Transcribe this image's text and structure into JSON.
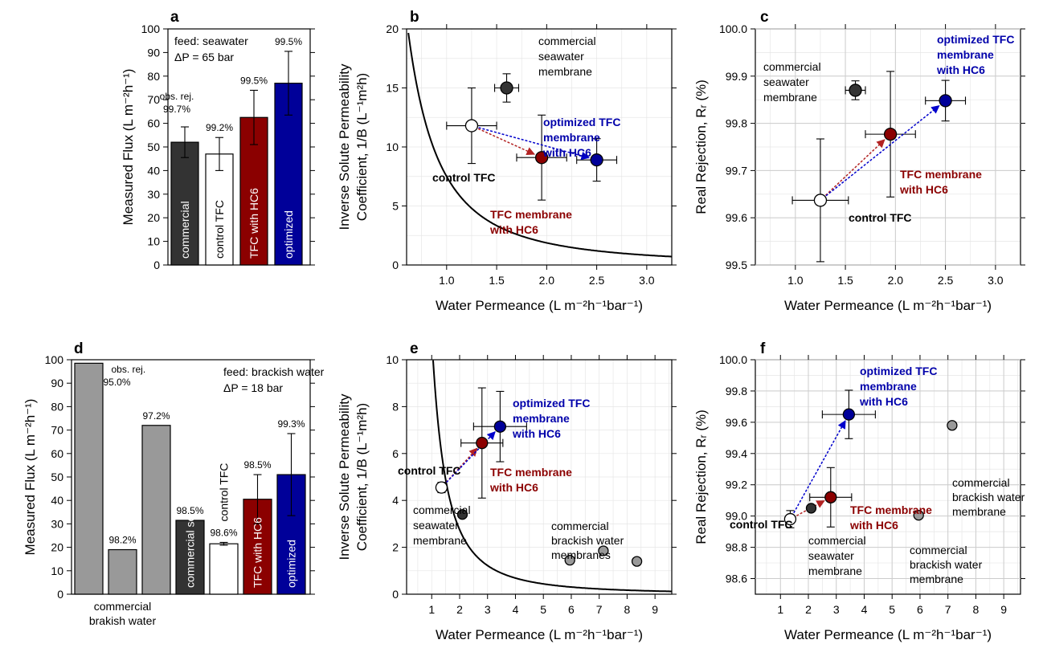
{
  "colors": {
    "commercial": "#333333",
    "control": "#ffffff",
    "hc6": "#8b0000",
    "optimized": "#000099",
    "brackish": "#999999",
    "grid": "#cccccc",
    "blue_text": "#0000aa",
    "red_text": "#8b0000"
  },
  "chart_data": [
    {
      "panel": "a",
      "type": "bar",
      "ylabel": "Measured Flux  (L m⁻²h⁻¹)",
      "ylim": [
        0,
        100
      ],
      "yticks": [
        0,
        10,
        20,
        30,
        40,
        50,
        60,
        70,
        80,
        90,
        100
      ],
      "feed_lines": [
        "feed: seawater",
        "ΔP = 65 bar"
      ],
      "obs_rej_label": "obs. rej.",
      "bars": [
        {
          "label": "commercial",
          "value": 52,
          "err": 6.5,
          "rejection": "99.7%",
          "color": "#333333"
        },
        {
          "label": "control TFC",
          "value": 47,
          "err": 7,
          "rejection": "99.2%",
          "color": "#ffffff"
        },
        {
          "label": "TFC with HC6",
          "value": 62.5,
          "err": 11.5,
          "rejection": "99.5%",
          "color": "#8b0000"
        },
        {
          "label": "optimized",
          "value": 77,
          "err": 13.5,
          "rejection": "99.5%",
          "color": "#000099"
        }
      ]
    },
    {
      "panel": "b",
      "type": "scatter",
      "xlabel": "Water Permeance (L m⁻²h⁻¹bar⁻¹)",
      "ylabel_lines": [
        "Inverse Solute Permeability",
        "Coefficient, 1/B  (L⁻¹m²h)"
      ],
      "xlim": [
        0.6,
        3.25
      ],
      "ylim": [
        0,
        20
      ],
      "xticks": [
        1.0,
        1.5,
        2.0,
        2.5,
        3.0
      ],
      "xtick_labels": [
        "1.0",
        "1.5",
        "2.0",
        "2.5",
        "3.0"
      ],
      "yticks": [
        0,
        5,
        10,
        15,
        20
      ],
      "curve_k": 7.5,
      "points": [
        {
          "name": "commercial seawater membrane",
          "x": 1.6,
          "y": 15.0,
          "xerr": 0.12,
          "yerr": 1.2,
          "color": "#333333"
        },
        {
          "name": "control TFC",
          "x": 1.25,
          "y": 11.8,
          "xerr": 0.25,
          "yerr": 3.2,
          "color": "#ffffff"
        },
        {
          "name": "TFC membrane with HC6",
          "x": 1.95,
          "y": 9.1,
          "xerr": 0.25,
          "yerr": 3.6,
          "color": "#8b0000"
        },
        {
          "name": "optimized TFC membrane with HC6",
          "x": 2.5,
          "y": 8.9,
          "xerr": 0.2,
          "yerr": 1.8,
          "color": "#000099"
        }
      ],
      "labels": {
        "commercial": [
          "commercial",
          "seawater",
          "membrane"
        ],
        "control": [
          "control TFC"
        ],
        "hc6": [
          "TFC membrane",
          "with HC6"
        ],
        "optimized": [
          "optimized TFC",
          "membrane",
          "with HC6"
        ]
      }
    },
    {
      "panel": "c",
      "type": "scatter",
      "xlabel": "Water Permeance (L m⁻²h⁻¹bar⁻¹)",
      "ylabel": "Real Rejection, Rᵣ  (%)",
      "xlim": [
        0.6,
        3.25
      ],
      "ylim": [
        99.5,
        100.0
      ],
      "xticks": [
        1.0,
        1.5,
        2.0,
        2.5,
        3.0
      ],
      "xtick_labels": [
        "1.0",
        "1.5",
        "2.0",
        "2.5",
        "3.0"
      ],
      "yticks": [
        99.5,
        99.6,
        99.7,
        99.8,
        99.9,
        100.0
      ],
      "ytick_labels": [
        "99.5",
        "99.6",
        "99.7",
        "99.8",
        "99.9",
        "100.0"
      ],
      "points": [
        {
          "name": "commercial seawater membrane",
          "x": 1.6,
          "y": 99.87,
          "xerr": 0.1,
          "yerr": 0.02,
          "color": "#333333"
        },
        {
          "name": "control TFC",
          "x": 1.25,
          "y": 99.637,
          "xerr": 0.28,
          "yerr": 0.13,
          "color": "#ffffff"
        },
        {
          "name": "TFC membrane with HC6",
          "x": 1.95,
          "y": 99.777,
          "xerr": 0.25,
          "yerr": 0.133,
          "color": "#8b0000"
        },
        {
          "name": "optimized TFC membrane with HC6",
          "x": 2.5,
          "y": 99.848,
          "xerr": 0.2,
          "yerr": 0.043,
          "color": "#000099"
        }
      ],
      "labels": {
        "commercial": [
          "commercial",
          "seawater",
          "membrane"
        ],
        "control": [
          "control TFC"
        ],
        "hc6": [
          "TFC membrane",
          "with HC6"
        ],
        "optimized": [
          "optimized TFC",
          "membrane",
          "with HC6"
        ]
      }
    },
    {
      "panel": "d",
      "type": "bar",
      "ylabel": "Measured Flux  (L m⁻²h⁻¹)",
      "ylim": [
        0,
        100
      ],
      "yticks": [
        0,
        10,
        20,
        30,
        40,
        50,
        60,
        70,
        80,
        90,
        100
      ],
      "feed_lines": [
        "feed: brackish water",
        "ΔP = 18 bar"
      ],
      "obs_rej_label": "obs. rej.",
      "group_label_lines": [
        "commercial",
        "brakish water"
      ],
      "bars": [
        {
          "label": "",
          "value": 98.5,
          "err": 0,
          "rejection": "95.0%",
          "color": "#999999"
        },
        {
          "label": "",
          "value": 19,
          "err": 0,
          "rejection": "98.2%",
          "color": "#999999"
        },
        {
          "label": "",
          "value": 72,
          "err": 0,
          "rejection": "97.2%",
          "color": "#999999"
        },
        {
          "label": "commercial seawater",
          "value": 31.5,
          "err": 0,
          "rejection": "98.5%",
          "color": "#333333"
        },
        {
          "label": "control TFC",
          "value": 21.5,
          "err": 0.6,
          "rejection": "98.6%",
          "color": "#ffffff"
        },
        {
          "label": "TFC with HC6",
          "value": 40.5,
          "err": 10.5,
          "rejection": "98.5%",
          "color": "#8b0000"
        },
        {
          "label": "optimized",
          "value": 51,
          "err": 17.5,
          "rejection": "99.3%",
          "color": "#000099"
        }
      ]
    },
    {
      "panel": "e",
      "type": "scatter",
      "xlabel": "Water Permeance (L m⁻²h⁻¹bar⁻¹)",
      "ylabel_lines": [
        "Inverse Solute Permeability",
        "Coefficient, 1/B  (L⁻¹m²h)"
      ],
      "xlim": [
        0.1,
        9.6
      ],
      "ylim": [
        0,
        10
      ],
      "xticks": [
        1,
        2,
        3,
        4,
        5,
        6,
        7,
        8,
        9
      ],
      "xtick_labels": [
        "1",
        "2",
        "3",
        "4",
        "5",
        "6",
        "7",
        "8",
        "9"
      ],
      "yticks": [
        0,
        2,
        4,
        6,
        8,
        10
      ],
      "curve_k": 11,
      "points": [
        {
          "name": "control TFC",
          "x": 1.35,
          "y": 4.55,
          "xerr": 0.15,
          "yerr": 0.22,
          "color": "#ffffff"
        },
        {
          "name": "commercial seawater membrane",
          "x": 2.1,
          "y": 3.4,
          "xerr": 0,
          "yerr": 0,
          "color": "#333333"
        },
        {
          "name": "TFC membrane with HC6",
          "x": 2.8,
          "y": 6.45,
          "xerr": 0.75,
          "yerr": 2.35,
          "color": "#8b0000"
        },
        {
          "name": "optimized TFC membrane with HC6",
          "x": 3.45,
          "y": 7.15,
          "xerr": 0.95,
          "yerr": 1.5,
          "color": "#000099"
        },
        {
          "name": "commercial brackish water membranes",
          "x": 5.95,
          "y": 1.45,
          "xerr": 0,
          "yerr": 0,
          "color": "#999999"
        },
        {
          "name": "commercial brackish water membranes",
          "x": 7.15,
          "y": 1.85,
          "xerr": 0,
          "yerr": 0,
          "color": "#999999"
        },
        {
          "name": "commercial brackish water membranes",
          "x": 8.35,
          "y": 1.4,
          "xerr": 0,
          "yerr": 0,
          "color": "#999999"
        }
      ],
      "labels": {
        "control": [
          "control TFC"
        ],
        "commercial": [
          "commercial",
          "seawater",
          "membrane"
        ],
        "hc6": [
          "TFC membrane",
          "with HC6"
        ],
        "optimized": [
          "optimized TFC",
          "membrane",
          "with HC6"
        ],
        "brackish": [
          "commercial",
          "brackish water",
          "membranes"
        ]
      }
    },
    {
      "panel": "f",
      "type": "scatter",
      "xlabel": "Water Permeance (L m⁻²h⁻¹bar⁻¹)",
      "ylabel": "Real Rejection, Rᵣ  (%)",
      "xlim": [
        0.1,
        9.6
      ],
      "ylim": [
        98.5,
        100.0
      ],
      "xticks": [
        1,
        2,
        3,
        4,
        5,
        6,
        7,
        8,
        9
      ],
      "xtick_labels": [
        "1",
        "2",
        "3",
        "4",
        "5",
        "6",
        "7",
        "8",
        "9"
      ],
      "yticks": [
        98.6,
        98.8,
        99.0,
        99.2,
        99.4,
        99.6,
        99.8,
        100.0
      ],
      "ytick_labels": [
        "98.6",
        "98.8",
        "99.0",
        "99.2",
        "99.4",
        "99.6",
        "99.8",
        "100.0"
      ],
      "points": [
        {
          "name": "control TFC",
          "x": 1.35,
          "y": 98.98,
          "xerr": 0.15,
          "yerr": 0.055,
          "color": "#ffffff"
        },
        {
          "name": "commercial seawater membrane",
          "x": 2.1,
          "y": 99.05,
          "xerr": 0,
          "yerr": 0,
          "color": "#333333"
        },
        {
          "name": "TFC membrane with HC6",
          "x": 2.8,
          "y": 99.12,
          "xerr": 0.75,
          "yerr": 0.19,
          "color": "#8b0000"
        },
        {
          "name": "optimized TFC membrane with HC6",
          "x": 3.45,
          "y": 99.65,
          "xerr": 0.95,
          "yerr": 0.155,
          "color": "#000099"
        },
        {
          "name": "commercial brackish water membrane",
          "x": 5.95,
          "y": 99.005,
          "xerr": 0,
          "yerr": 0,
          "color": "#999999"
        },
        {
          "name": "commercial brackish water membrane",
          "x": 7.15,
          "y": 99.58,
          "xerr": 0,
          "yerr": 0,
          "color": "#999999"
        }
      ],
      "labels": {
        "control": [
          "control TFC"
        ],
        "commercial": [
          "commercial",
          "seawater",
          "membrane"
        ],
        "hc6": [
          "TFC membrane",
          "with HC6"
        ],
        "optimized": [
          "optimized TFC",
          "membrane",
          "with HC6"
        ],
        "brackish1": [
          "commercial",
          "brackish water",
          "membrane"
        ],
        "brackish2": [
          "commercial",
          "brackish water",
          "membrane"
        ]
      }
    }
  ]
}
